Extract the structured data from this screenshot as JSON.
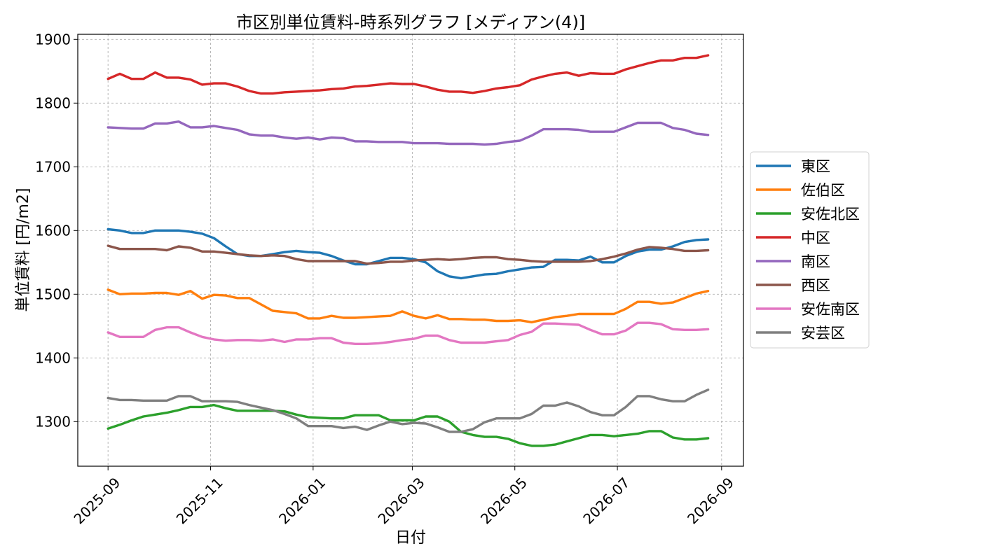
{
  "chart_data": {
    "type": "line",
    "title": "市区別単位賃料-時系列グラフ [メディアン(4)]",
    "xlabel": "日付",
    "ylabel": "単位賃料 [円/m2]",
    "x_ticks": [
      {
        "label": "2025-09",
        "date": "2025-09-01"
      },
      {
        "label": "2025-11",
        "date": "2025-11-01"
      },
      {
        "label": "2026-01",
        "date": "2026-01-01"
      },
      {
        "label": "2026-03",
        "date": "2026-03-01"
      },
      {
        "label": "2026-05",
        "date": "2026-05-01"
      },
      {
        "label": "2026-07",
        "date": "2026-07-01"
      },
      {
        "label": "2026-09",
        "date": "2026-09-01"
      }
    ],
    "y_ticks": [
      1300,
      1400,
      1500,
      1600,
      1700,
      1800,
      1900
    ],
    "xlim": [
      "2025-08-14",
      "2026-09-14"
    ],
    "ylim": [
      1230,
      1908
    ],
    "grid": true,
    "legend_position": "right-outside",
    "dates": [
      "2025-09-01",
      "2025-09-08",
      "2025-09-15",
      "2025-09-22",
      "2025-09-29",
      "2025-10-06",
      "2025-10-13",
      "2025-10-20",
      "2025-10-27",
      "2025-11-03",
      "2025-11-10",
      "2025-11-17",
      "2025-11-24",
      "2025-12-01",
      "2025-12-08",
      "2025-12-15",
      "2025-12-22",
      "2025-12-29",
      "2026-01-05",
      "2026-01-12",
      "2026-01-19",
      "2026-01-26",
      "2026-02-02",
      "2026-02-09",
      "2026-02-16",
      "2026-02-23",
      "2026-03-02",
      "2026-03-09",
      "2026-03-16",
      "2026-03-23",
      "2026-03-30",
      "2026-04-06",
      "2026-04-13",
      "2026-04-20",
      "2026-04-27",
      "2026-05-04",
      "2026-05-11",
      "2026-05-18",
      "2026-05-25",
      "2026-06-01",
      "2026-06-08",
      "2026-06-15",
      "2026-06-22",
      "2026-06-29",
      "2026-07-06",
      "2026-07-13",
      "2026-07-20",
      "2026-07-27",
      "2026-08-03",
      "2026-08-10",
      "2026-08-17",
      "2026-08-24"
    ],
    "series": [
      {
        "name": "東区",
        "color": "#1f77b4",
        "values": [
          1602,
          1600,
          1596,
          1596,
          1600,
          1600,
          1600,
          1598,
          1595,
          1588,
          1575,
          1563,
          1560,
          1560,
          1563,
          1566,
          1568,
          1566,
          1565,
          1560,
          1553,
          1547,
          1547,
          1552,
          1557,
          1557,
          1555,
          1550,
          1536,
          1528,
          1525,
          1528,
          1531,
          1532,
          1536,
          1539,
          1542,
          1543,
          1554,
          1554,
          1553,
          1559,
          1550,
          1550,
          1560,
          1567,
          1570,
          1570,
          1575,
          1582,
          1585,
          1586
        ]
      },
      {
        "name": "佐伯区",
        "color": "#ff7f0e",
        "values": [
          1507,
          1500,
          1501,
          1501,
          1502,
          1502,
          1499,
          1505,
          1493,
          1499,
          1498,
          1494,
          1494,
          1484,
          1474,
          1472,
          1470,
          1462,
          1462,
          1466,
          1463,
          1463,
          1464,
          1465,
          1466,
          1473,
          1466,
          1462,
          1467,
          1461,
          1461,
          1460,
          1460,
          1458,
          1458,
          1459,
          1456,
          1460,
          1464,
          1466,
          1469,
          1469,
          1469,
          1469,
          1477,
          1488,
          1488,
          1485,
          1487,
          1494,
          1501,
          1505
        ]
      },
      {
        "name": "安佐北区",
        "color": "#2ca02c",
        "values": [
          1289,
          1295,
          1302,
          1308,
          1311,
          1314,
          1318,
          1323,
          1323,
          1326,
          1321,
          1317,
          1317,
          1317,
          1317,
          1316,
          1311,
          1307,
          1306,
          1305,
          1305,
          1310,
          1310,
          1310,
          1302,
          1302,
          1302,
          1308,
          1308,
          1300,
          1284,
          1279,
          1276,
          1276,
          1273,
          1266,
          1262,
          1262,
          1264,
          1269,
          1274,
          1279,
          1279,
          1277,
          1279,
          1281,
          1285,
          1285,
          1275,
          1272,
          1272,
          1274
        ]
      },
      {
        "name": "中区",
        "color": "#d62728",
        "values": [
          1838,
          1846,
          1838,
          1838,
          1848,
          1840,
          1840,
          1837,
          1829,
          1831,
          1831,
          1826,
          1819,
          1815,
          1815,
          1817,
          1818,
          1819,
          1820,
          1822,
          1823,
          1826,
          1827,
          1829,
          1831,
          1830,
          1830,
          1826,
          1821,
          1818,
          1818,
          1816,
          1819,
          1823,
          1825,
          1828,
          1837,
          1842,
          1846,
          1848,
          1843,
          1847,
          1846,
          1846,
          1853,
          1858,
          1863,
          1867,
          1867,
          1871,
          1871,
          1875
        ]
      },
      {
        "name": "南区",
        "color": "#9467bd",
        "values": [
          1762,
          1761,
          1760,
          1760,
          1768,
          1768,
          1771,
          1762,
          1762,
          1764,
          1761,
          1758,
          1751,
          1749,
          1749,
          1746,
          1744,
          1746,
          1743,
          1746,
          1745,
          1740,
          1740,
          1739,
          1739,
          1739,
          1737,
          1737,
          1737,
          1736,
          1736,
          1736,
          1735,
          1736,
          1739,
          1741,
          1749,
          1759,
          1759,
          1759,
          1758,
          1755,
          1755,
          1755,
          1762,
          1769,
          1769,
          1769,
          1761,
          1758,
          1752,
          1750
        ]
      },
      {
        "name": "西区",
        "color": "#8c564b",
        "values": [
          1576,
          1571,
          1571,
          1571,
          1571,
          1569,
          1575,
          1573,
          1567,
          1567,
          1565,
          1563,
          1561,
          1560,
          1561,
          1560,
          1555,
          1552,
          1552,
          1552,
          1552,
          1552,
          1548,
          1549,
          1551,
          1551,
          1553,
          1554,
          1555,
          1554,
          1555,
          1557,
          1558,
          1558,
          1555,
          1554,
          1552,
          1551,
          1551,
          1551,
          1551,
          1552,
          1555,
          1559,
          1564,
          1570,
          1574,
          1573,
          1571,
          1568,
          1568,
          1569
        ]
      },
      {
        "name": "安佐南区",
        "color": "#e377c2",
        "values": [
          1440,
          1433,
          1433,
          1433,
          1444,
          1448,
          1448,
          1440,
          1433,
          1429,
          1427,
          1428,
          1428,
          1427,
          1429,
          1425,
          1429,
          1429,
          1431,
          1431,
          1424,
          1422,
          1422,
          1423,
          1425,
          1428,
          1430,
          1435,
          1435,
          1428,
          1424,
          1424,
          1424,
          1426,
          1428,
          1436,
          1441,
          1454,
          1454,
          1453,
          1452,
          1444,
          1437,
          1437,
          1443,
          1455,
          1455,
          1453,
          1445,
          1444,
          1444,
          1445
        ]
      },
      {
        "name": "安芸区",
        "color": "#7f7f7f",
        "values": [
          1337,
          1334,
          1334,
          1333,
          1333,
          1333,
          1340,
          1340,
          1332,
          1332,
          1332,
          1331,
          1326,
          1322,
          1318,
          1312,
          1305,
          1293,
          1293,
          1293,
          1290,
          1292,
          1287,
          1294,
          1300,
          1296,
          1298,
          1297,
          1291,
          1284,
          1284,
          1288,
          1299,
          1305,
          1305,
          1305,
          1312,
          1325,
          1325,
          1330,
          1324,
          1315,
          1310,
          1310,
          1323,
          1340,
          1340,
          1335,
          1332,
          1332,
          1342,
          1350
        ]
      }
    ]
  }
}
